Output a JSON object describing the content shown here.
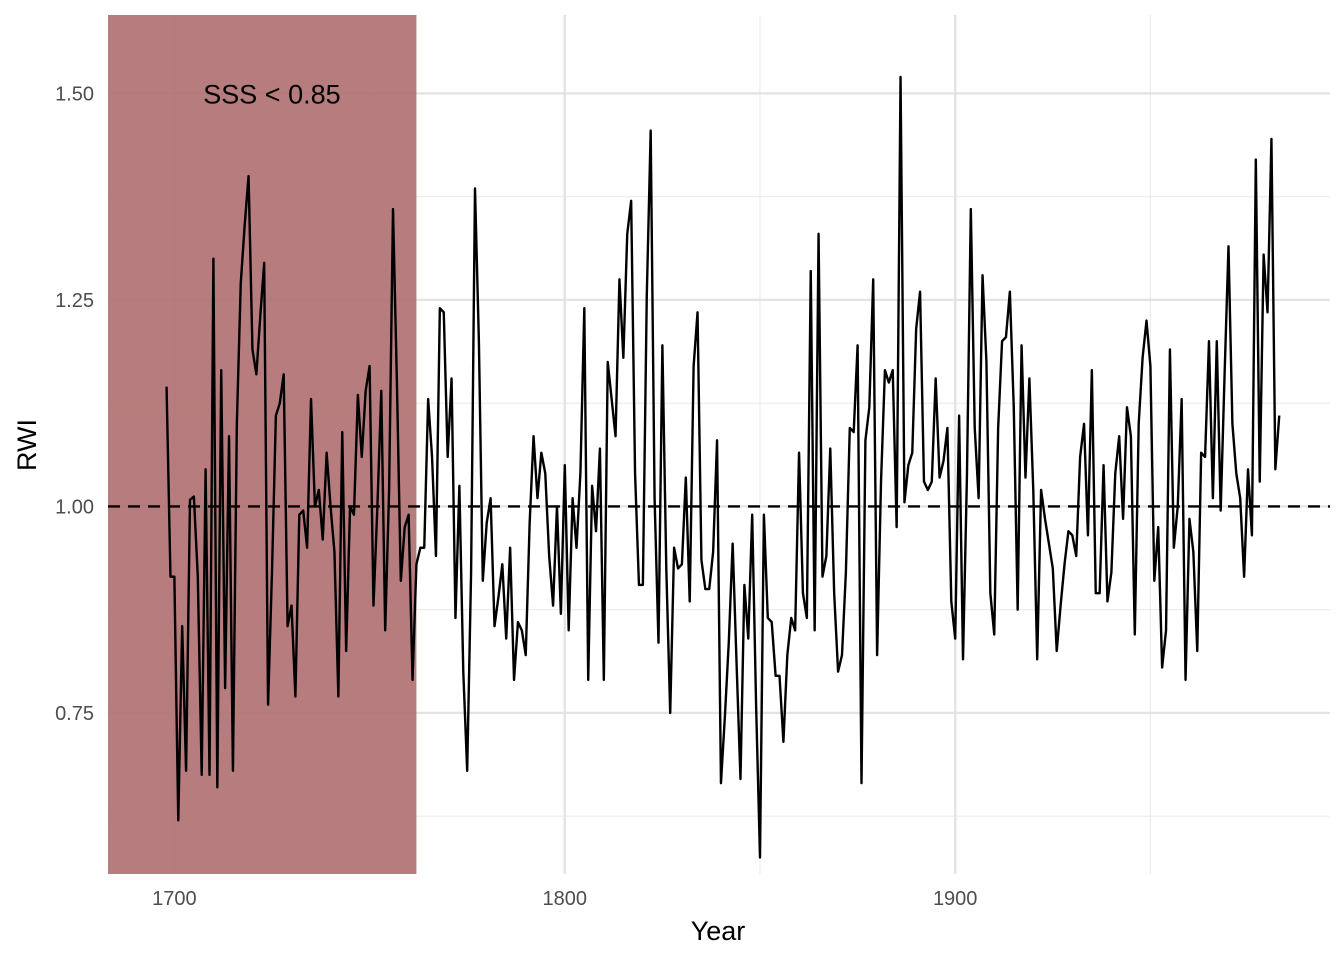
{
  "chart_data": {
    "type": "line",
    "title": "",
    "xlabel": "Year",
    "ylabel": "RWI",
    "xlim": [
      1683,
      1996
    ],
    "ylim": [
      0.555,
      1.595
    ],
    "x_ticks": [
      1700,
      1800,
      1900
    ],
    "x_tick_labels": [
      "1700",
      "1800",
      "1900"
    ],
    "y_ticks": [
      0.75,
      1.0,
      1.25,
      1.5
    ],
    "y_tick_labels": [
      "0.75",
      "1.00",
      "1.25",
      "1.50"
    ],
    "x_minor_ticks": [
      1750,
      1850,
      1950
    ],
    "y_minor_ticks": [
      0.625,
      0.875,
      1.125,
      1.375
    ],
    "grid": true,
    "legend": "none",
    "reference_line": {
      "y": 1.0,
      "style": "dashed",
      "color": "#000000"
    },
    "shaded_region": {
      "x_start": 1683,
      "x_end": 1762,
      "color": "#b17172",
      "label": "SSS < 0.85",
      "label_x": 1725,
      "label_y": 1.5
    },
    "series": [
      {
        "color": "#000000",
        "start_year": 1698,
        "values": [
          1.145,
          0.915,
          0.915,
          0.62,
          0.855,
          0.68,
          1.008,
          1.012,
          0.915,
          0.675,
          1.045,
          0.675,
          1.3,
          0.66,
          1.165,
          0.78,
          1.085,
          0.68,
          1.1,
          1.27,
          1.34,
          1.4,
          1.19,
          1.16,
          1.23,
          1.295,
          0.76,
          0.92,
          1.11,
          1.125,
          1.16,
          0.855,
          0.88,
          0.77,
          0.99,
          0.995,
          0.95,
          1.13,
          1.0,
          1.02,
          0.96,
          1.065,
          1.0,
          0.945,
          0.77,
          1.09,
          0.825,
          1.0,
          0.99,
          1.135,
          1.06,
          1.14,
          1.17,
          0.88,
          1.0,
          1.14,
          0.85,
          1.02,
          1.36,
          1.15,
          0.91,
          0.975,
          0.99,
          0.79,
          0.93,
          0.95,
          0.95,
          1.13,
          1.06,
          0.94,
          1.24,
          1.235,
          1.06,
          1.155,
          0.865,
          1.025,
          0.8,
          0.68,
          0.92,
          1.385,
          1.2,
          0.91,
          0.98,
          1.01,
          0.855,
          0.89,
          0.93,
          0.84,
          0.95,
          0.79,
          0.86,
          0.85,
          0.82,
          0.98,
          1.085,
          1.01,
          1.065,
          1.04,
          0.94,
          0.88,
          1.0,
          0.87,
          1.05,
          0.85,
          1.01,
          0.95,
          1.04,
          1.24,
          0.79,
          1.025,
          0.97,
          1.07,
          0.79,
          1.175,
          1.13,
          1.085,
          1.275,
          1.18,
          1.33,
          1.37,
          1.04,
          0.905,
          0.905,
          1.255,
          1.455,
          1.01,
          0.835,
          1.195,
          0.925,
          0.75,
          0.95,
          0.925,
          0.93,
          1.035,
          0.885,
          1.17,
          1.235,
          0.935,
          0.9,
          0.9,
          0.945,
          1.08,
          0.665,
          0.745,
          0.835,
          0.955,
          0.81,
          0.67,
          0.905,
          0.84,
          0.99,
          0.76,
          0.575,
          0.99,
          0.865,
          0.86,
          0.795,
          0.795,
          0.715,
          0.82,
          0.865,
          0.85,
          1.065,
          0.895,
          0.865,
          1.285,
          0.85,
          1.33,
          0.915,
          0.94,
          1.07,
          0.895,
          0.8,
          0.82,
          0.92,
          1.095,
          1.09,
          1.195,
          0.665,
          1.08,
          1.12,
          1.275,
          0.82,
          1.03,
          1.165,
          1.15,
          1.165,
          0.975,
          1.52,
          1.005,
          1.05,
          1.065,
          1.215,
          1.26,
          1.03,
          1.02,
          1.03,
          1.155,
          1.035,
          1.055,
          1.095,
          0.885,
          0.84,
          1.11,
          0.815,
          1.035,
          1.36,
          1.095,
          1.01,
          1.28,
          1.175,
          0.895,
          0.845,
          1.095,
          1.2,
          1.205,
          1.26,
          1.12,
          0.875,
          1.195,
          1.035,
          1.155,
          1.02,
          0.815,
          1.02,
          0.985,
          0.955,
          0.925,
          0.825,
          0.88,
          0.93,
          0.97,
          0.965,
          0.94,
          1.06,
          1.1,
          0.965,
          1.165,
          0.895,
          0.895,
          1.05,
          0.885,
          0.92,
          1.04,
          1.085,
          0.985,
          1.12,
          1.085,
          0.845,
          1.1,
          1.18,
          1.225,
          1.17,
          0.91,
          0.975,
          0.805,
          0.85,
          1.19,
          0.95,
          1.0,
          1.13,
          0.79,
          0.985,
          0.945,
          0.825,
          1.065,
          1.06,
          1.2,
          1.01,
          1.2,
          0.995,
          1.16,
          1.315,
          1.1,
          1.04,
          1.01,
          0.915,
          1.045,
          0.965,
          1.42,
          1.03,
          1.305,
          1.235,
          1.445,
          1.045,
          1.11
        ]
      }
    ]
  }
}
